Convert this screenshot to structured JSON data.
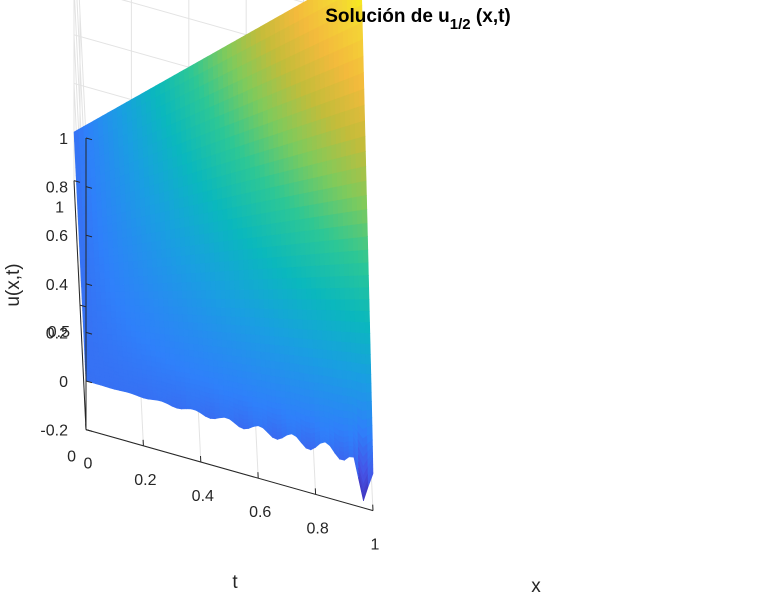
{
  "chart_data": {
    "type": "surface",
    "title_main": "Solución de u",
    "title_sub": "1/2",
    "title_tail": " (x,t)",
    "xlabel": "x",
    "ylabel": "t",
    "zlabel": "u(x,t)",
    "xlim": [
      0,
      1
    ],
    "ylim": [
      0,
      1
    ],
    "zlim": [
      -0.2,
      1
    ],
    "xticks": [
      0,
      0.2,
      0.4,
      0.6,
      0.8,
      1
    ],
    "xtick_labels": [
      "0",
      "0.2",
      "0.4",
      "0.6",
      "0.8",
      "1"
    ],
    "yticks": [
      0,
      0.5,
      1
    ],
    "ytick_labels": [
      "0",
      "0.5",
      "1"
    ],
    "zticks": [
      -0.2,
      0,
      0.2,
      0.4,
      0.6,
      0.8,
      1
    ],
    "ztick_labels": [
      "-0.2",
      "0",
      "0.2",
      "0.4",
      "0.6",
      "0.8",
      "1"
    ],
    "grid": true,
    "colormap": "parula",
    "colormap_colors": [
      "#3e26a8",
      "#4653e6",
      "#2f80fa",
      "#1a9ee2",
      "#0ab8bd",
      "#2dc795",
      "#80ca5b",
      "#c4bc3a",
      "#f3ba3c",
      "#f4d535",
      "#f9fb0e"
    ],
    "surface": {
      "description_values": "approximately u = x*t with oscillatory numerical artifacts near t = 0",
      "corners": [
        {
          "x": 0,
          "t": 0,
          "u": 0
        },
        {
          "x": 1,
          "t": 0,
          "u": 0
        },
        {
          "x": 0,
          "t": 1,
          "u": 0
        },
        {
          "x": 1,
          "t": 1,
          "u": 1
        },
        {
          "x": 1,
          "t": 0.05,
          "u": 0.9
        }
      ],
      "minimum": {
        "x": 0.97,
        "t": 0,
        "u": -0.2
      }
    }
  }
}
